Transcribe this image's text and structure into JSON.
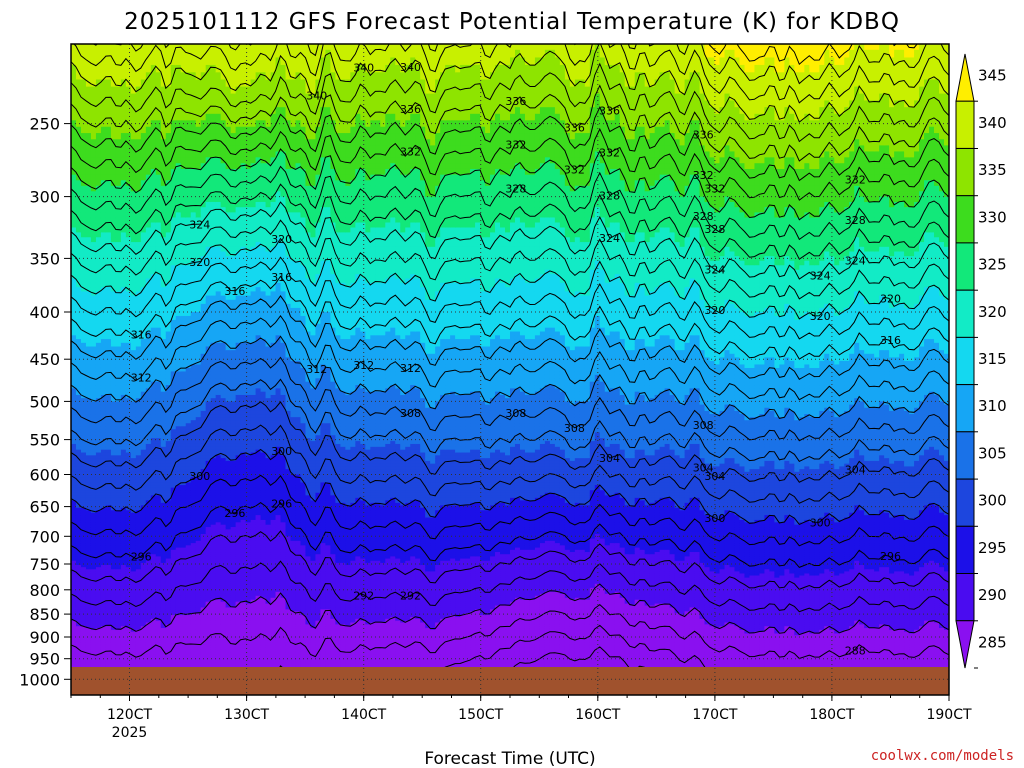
{
  "chart_data": {
    "type": "heatmap",
    "title": "2025101112 GFS Forecast Potential Temperature (K) for KDBQ",
    "xlabel": "Forecast Time (UTC)",
    "ylabel": "",
    "y_scale": "log-pressure",
    "y_ticks": [
      "250",
      "300",
      "350",
      "400",
      "450",
      "500",
      "550",
      "600",
      "650",
      "700",
      "750",
      "800",
      "850",
      "900",
      "950",
      "1000"
    ],
    "y_values": [
      250,
      300,
      350,
      400,
      450,
      500,
      550,
      600,
      650,
      700,
      750,
      800,
      850,
      900,
      950,
      1000
    ],
    "ylim": [
      1000,
      200
    ],
    "x_ticks": [
      "120CT",
      "130CT",
      "140CT",
      "150CT",
      "160CT",
      "170CT",
      "180CT",
      "190CT"
    ],
    "x_values": [
      12,
      13,
      14,
      15,
      16,
      17,
      18,
      19
    ],
    "x_sublabel": "2025",
    "xlim": [
      11.5,
      19.0
    ],
    "grid": true,
    "colorbar": {
      "labels": [
        "345",
        "340",
        "335",
        "330",
        "325",
        "320",
        "315",
        "310",
        "305",
        "300",
        "295",
        "290",
        "285"
      ],
      "levels": [
        345,
        340,
        335,
        330,
        325,
        320,
        315,
        310,
        305,
        300,
        295,
        290,
        285
      ],
      "colors": [
        "#ffee00",
        "#c8f000",
        "#8ee400",
        "#3ddc1e",
        "#12e87a",
        "#12ebc6",
        "#14d8f0",
        "#16a6f5",
        "#1a72e8",
        "#1d46de",
        "#1c10e8",
        "#4a0cf0",
        "#8a10f0"
      ],
      "max_color": "#ffee00",
      "min_color": "#8a10f0"
    },
    "surface_color": "#a0522d",
    "contour_label_values": [
      "344",
      "340",
      "340",
      "340",
      "336",
      "336",
      "336",
      "336",
      "336",
      "332",
      "332",
      "332",
      "332",
      "332",
      "332",
      "332",
      "328",
      "328",
      "328",
      "328",
      "328",
      "324",
      "324",
      "324",
      "324",
      "324",
      "320",
      "320",
      "320",
      "320",
      "320",
      "316",
      "316",
      "316",
      "316",
      "312",
      "312",
      "312",
      "312",
      "308",
      "308",
      "308",
      "308",
      "304",
      "304",
      "304",
      "304",
      "300",
      "300",
      "300",
      "300",
      "296",
      "296",
      "296",
      "296",
      "292",
      "292",
      "288"
    ]
  },
  "credit": "coolwx.com/models"
}
